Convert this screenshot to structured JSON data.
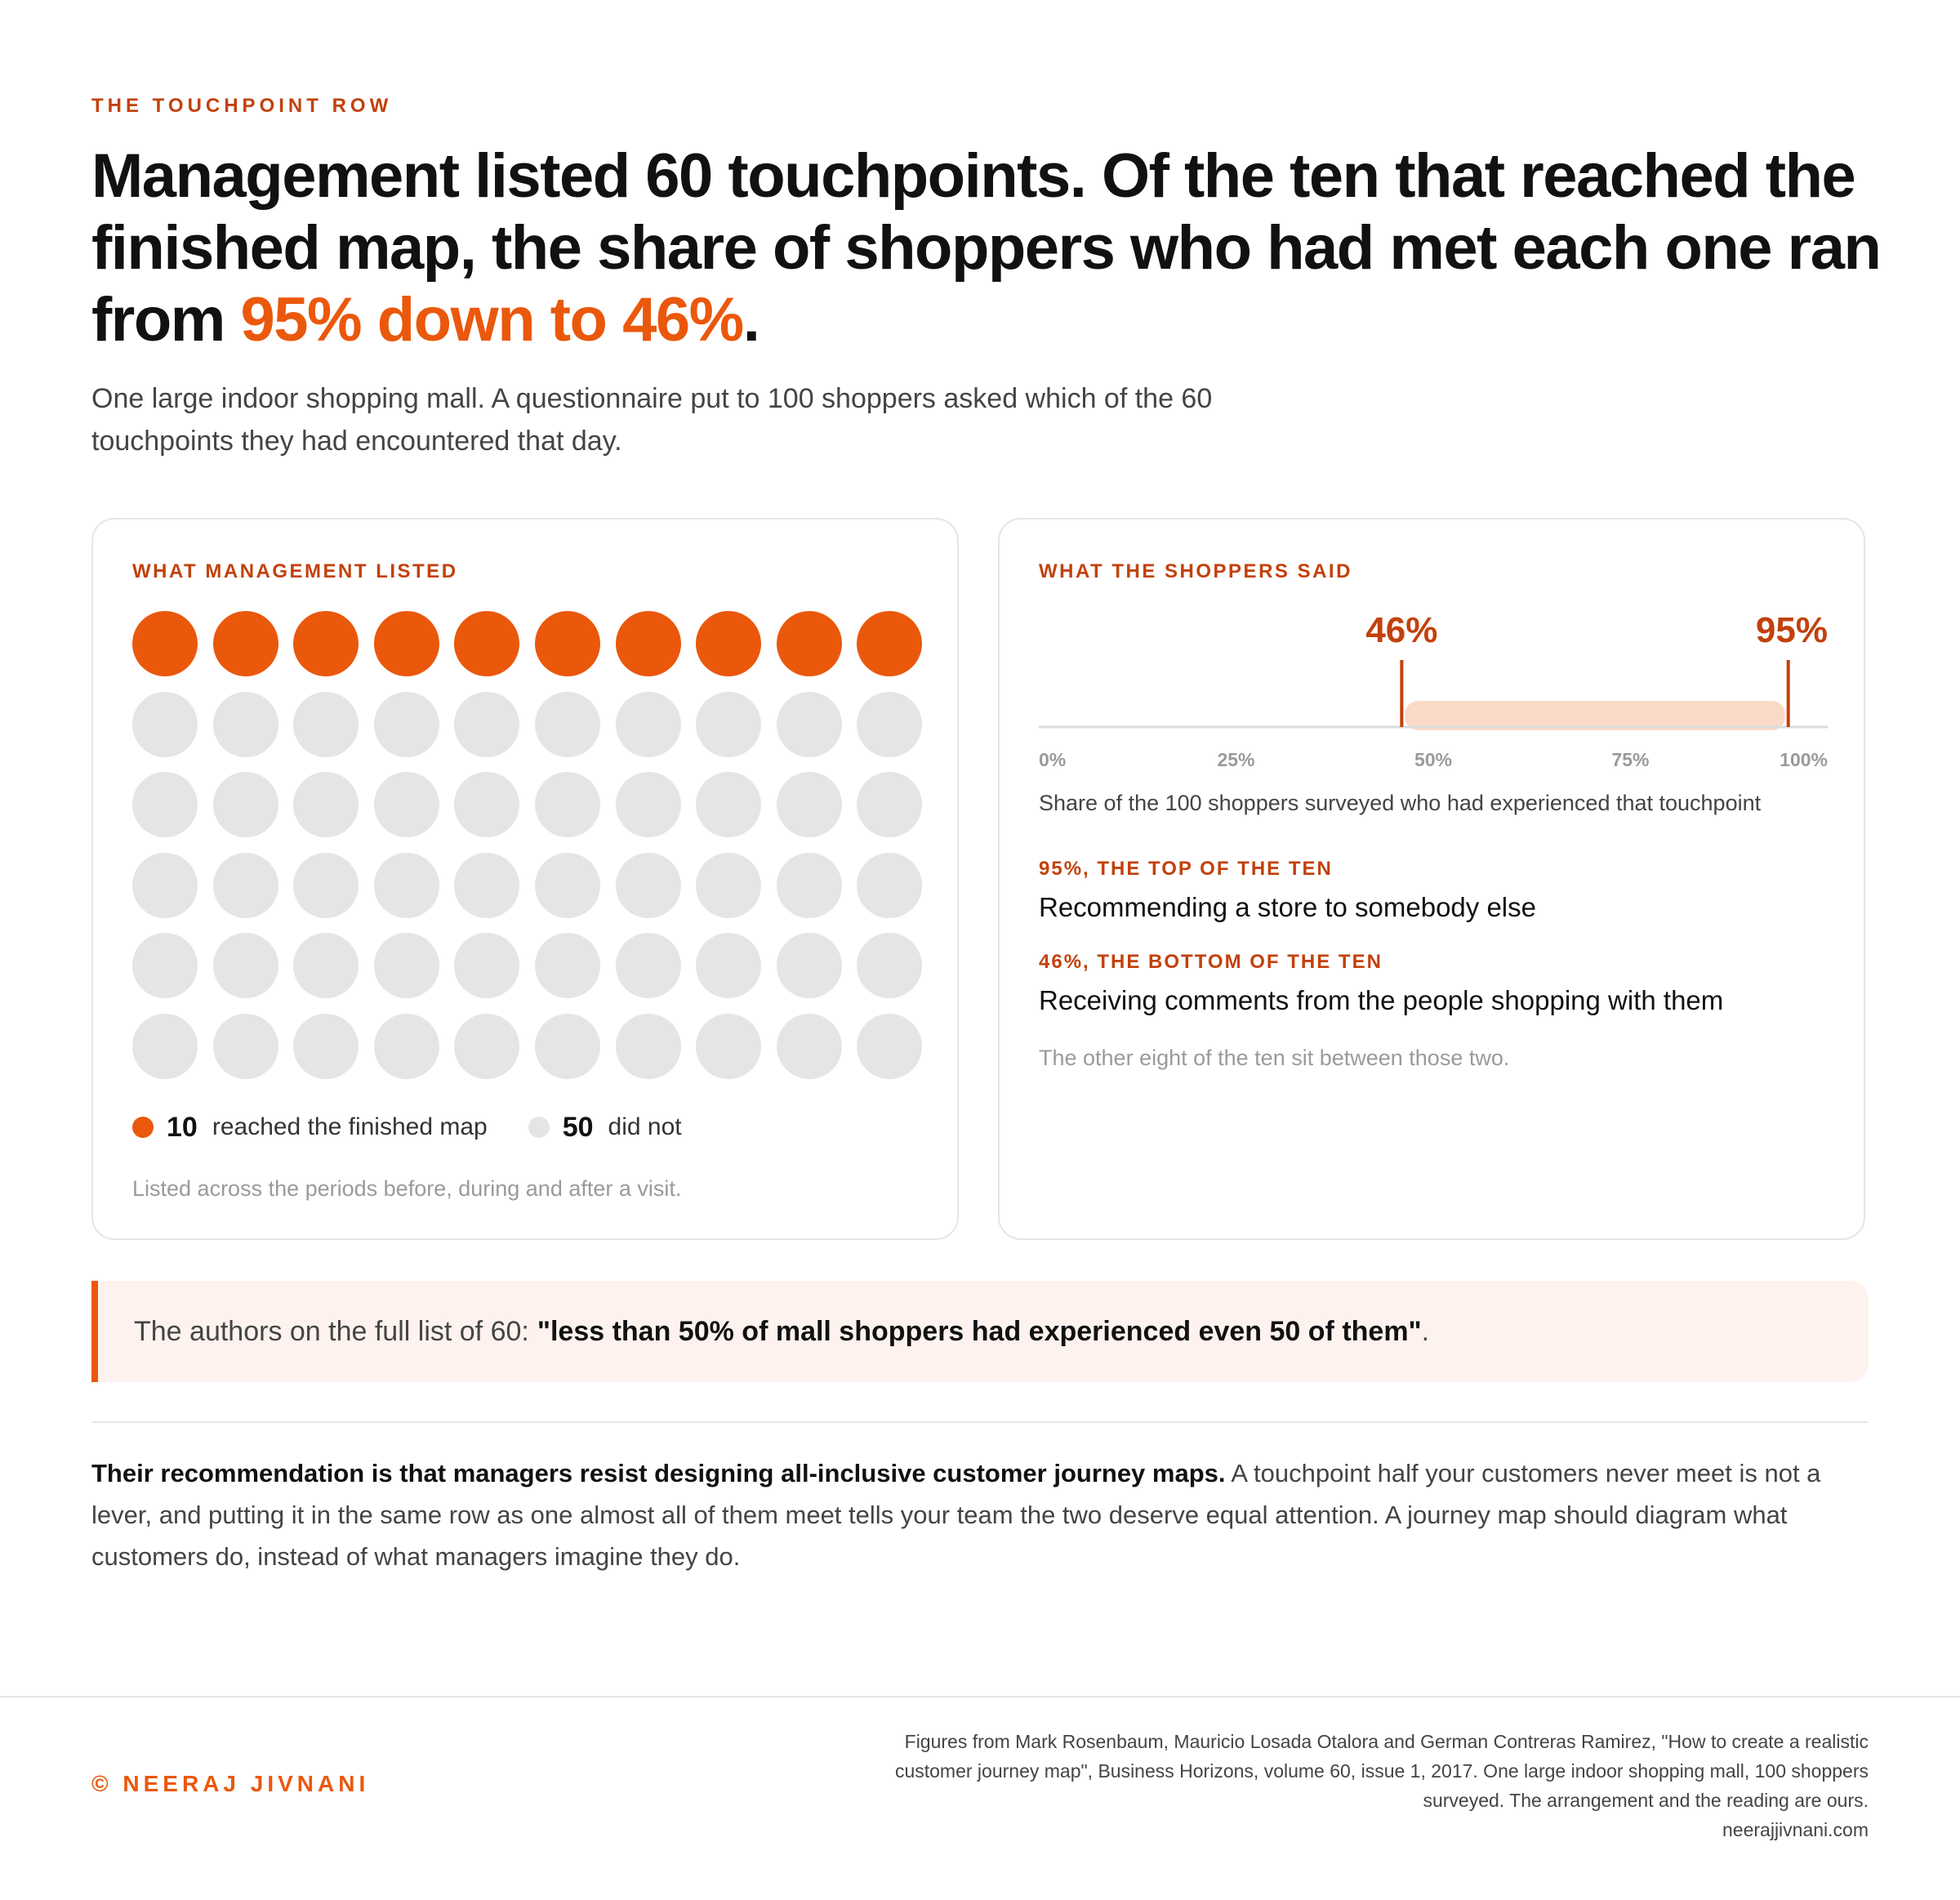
{
  "eyebrow": "THE TOUCHPOINT ROW",
  "headline": {
    "before": "Management listed 60 touchpoints. Of the ten that reached the finished map, the share of shoppers who had met each one ran from ",
    "highlight": "95% down to 46%",
    "after": "."
  },
  "subtitle": "One large indoor shopping mall. A questionnaire put to 100 shoppers asked which of the 60 touchpoints they had encountered that day.",
  "colors": {
    "accent": "#ea580c",
    "accent_dark": "#c2410c",
    "muted": "#e5e5e5",
    "band": "#fbd9c7"
  },
  "left_card": {
    "title": "WHAT MANAGEMENT LISTED",
    "legend": [
      {
        "count": "10",
        "label": "reached the finished map"
      },
      {
        "count": "50",
        "label": "did not"
      }
    ],
    "note": "Listed across the periods before, during and after a visit."
  },
  "right_card": {
    "title": "WHAT THE SHOPPERS SAID",
    "axis_caption": "Share of the 100 shoppers surveyed who had experienced that touchpoint",
    "top_label": "95%, THE TOP OF THE TEN",
    "top_text": "Recommending a store to somebody else",
    "bottom_label": "46%, THE BOTTOM OF THE TEN",
    "bottom_text": "Receiving comments from the people shopping with them",
    "faint_note": "The other eight of the ten sit between those two."
  },
  "quote": {
    "lead": "The authors on the full list of 60:",
    "bold": "\"less than 50% of mall shoppers had experienced even 50 of them\"",
    "tail": "."
  },
  "recommendation": {
    "bold": "Their recommendation is that managers resist designing all-inclusive customer journey maps.",
    "rest": " A touchpoint half your customers never meet is not a lever, and putting it in the same row as one almost all of them meet tells your team the two deserve equal attention. A journey map should diagram what customers do, instead of what managers imagine they do."
  },
  "footer": {
    "copyright": "© NEERAJ JIVNANI",
    "source_lines": [
      "Figures from Mark Rosenbaum, Mauricio Losada Otalora and German Contreras Ramirez, \"How to create a realistic",
      "customer journey map\", Business Horizons, volume 60, issue 1, 2017. One large indoor shopping mall, 100 shoppers",
      "surveyed. The arrangement and the reading are ours.",
      "neerajjivnani.com"
    ]
  },
  "chart_data": [
    {
      "type": "waffle",
      "total": 60,
      "columns": 10,
      "rows": 6,
      "highlighted": 10,
      "categories": [
        "reached the finished map",
        "did not"
      ],
      "values": [
        10,
        50
      ]
    },
    {
      "type": "range",
      "xlim": [
        0,
        100
      ],
      "ticks": [
        "0%",
        "25%",
        "50%",
        "75%",
        "100%"
      ],
      "tick_values": [
        0,
        25,
        50,
        75,
        100
      ],
      "range": [
        46,
        95
      ],
      "labels": [
        "46%",
        "95%"
      ],
      "xlabel": "Share of the 100 shoppers surveyed who had experienced that touchpoint"
    }
  ]
}
